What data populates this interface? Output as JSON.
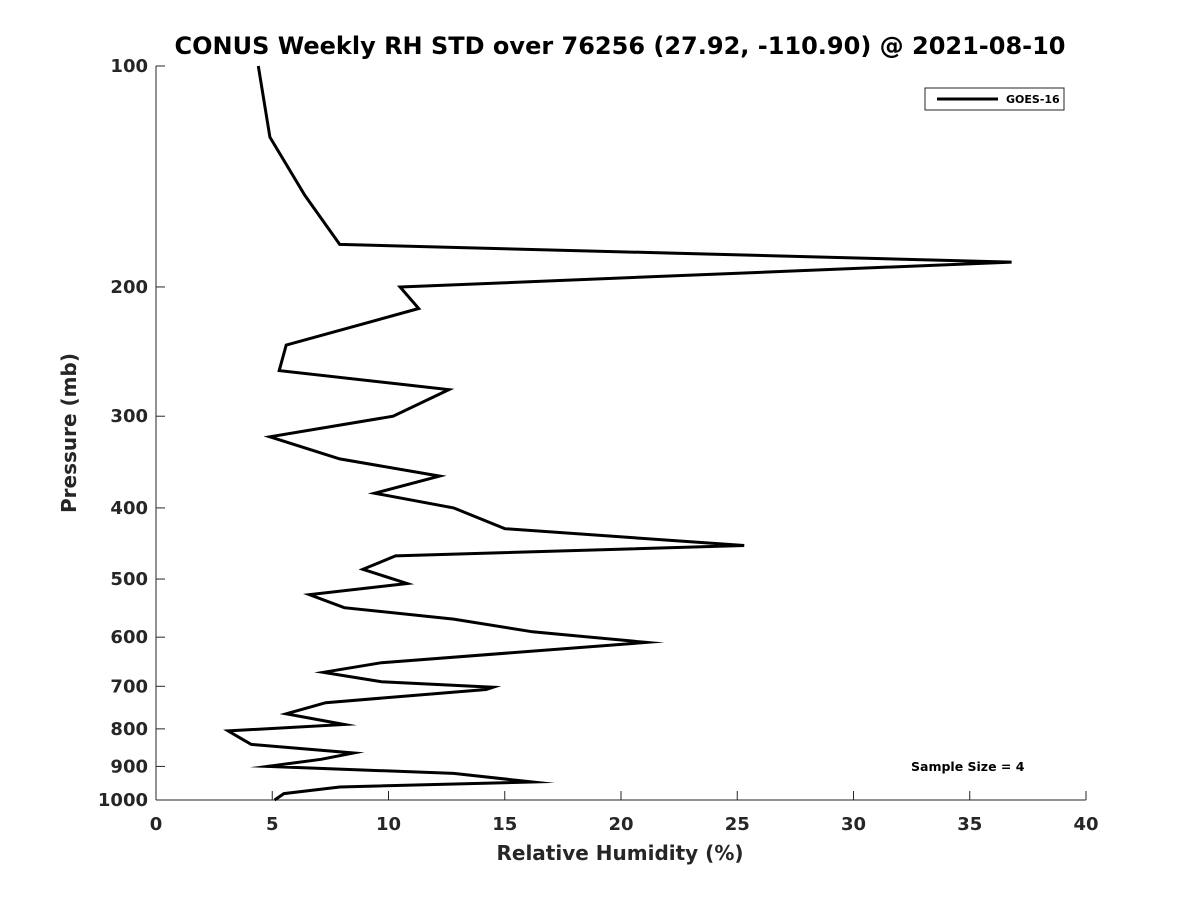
{
  "chart_data": {
    "type": "line",
    "title": "CONUS Weekly RH STD over 76256 (27.92, -110.90) @ 2021-08-10",
    "xlabel": "Relative Humidity (%)",
    "ylabel": "Pressure (mb)",
    "xlim": [
      0,
      40
    ],
    "ylim": [
      100,
      1000
    ],
    "yscale": "log",
    "y_reversed": true,
    "grid": false,
    "legend_position": "top-right",
    "xticks": [
      0,
      5,
      10,
      15,
      20,
      25,
      30,
      35,
      40
    ],
    "yticks": [
      100,
      200,
      300,
      400,
      500,
      600,
      700,
      800,
      900,
      1000
    ],
    "series": [
      {
        "name": "GOES-16",
        "color": "#000000",
        "points": [
          [
            4.4,
            100
          ],
          [
            4.9,
            125
          ],
          [
            6.4,
            150
          ],
          [
            7.9,
            175
          ],
          [
            36.8,
            185
          ],
          [
            10.5,
            200
          ],
          [
            11.3,
            214
          ],
          [
            5.6,
            240
          ],
          [
            5.3,
            260
          ],
          [
            12.6,
            276
          ],
          [
            10.2,
            300
          ],
          [
            4.9,
            320
          ],
          [
            7.9,
            343
          ],
          [
            12.2,
            362
          ],
          [
            9.4,
            382
          ],
          [
            12.8,
            400
          ],
          [
            15.0,
            427
          ],
          [
            25.3,
            450
          ],
          [
            10.3,
            465
          ],
          [
            8.9,
            485
          ],
          [
            10.8,
            507
          ],
          [
            6.6,
            525
          ],
          [
            8.1,
            547
          ],
          [
            12.8,
            567
          ],
          [
            16.2,
            590
          ],
          [
            21.1,
            610
          ],
          [
            9.7,
            650
          ],
          [
            7.2,
            670
          ],
          [
            9.7,
            690
          ],
          [
            14.5,
            702
          ],
          [
            14.2,
            707
          ],
          [
            7.3,
            737
          ],
          [
            5.6,
            763
          ],
          [
            8.1,
            789
          ],
          [
            3.1,
            805
          ],
          [
            3.7,
            826
          ],
          [
            4.1,
            840
          ],
          [
            8.5,
            863
          ],
          [
            7.1,
            880
          ],
          [
            4.8,
            900
          ],
          [
            12.8,
            920
          ],
          [
            16.2,
            945
          ],
          [
            7.9,
            960
          ],
          [
            5.5,
            980
          ],
          [
            5.1,
            1000
          ]
        ]
      }
    ],
    "legend": [
      "GOES-16"
    ],
    "annotation": "Sample Size = 4"
  }
}
